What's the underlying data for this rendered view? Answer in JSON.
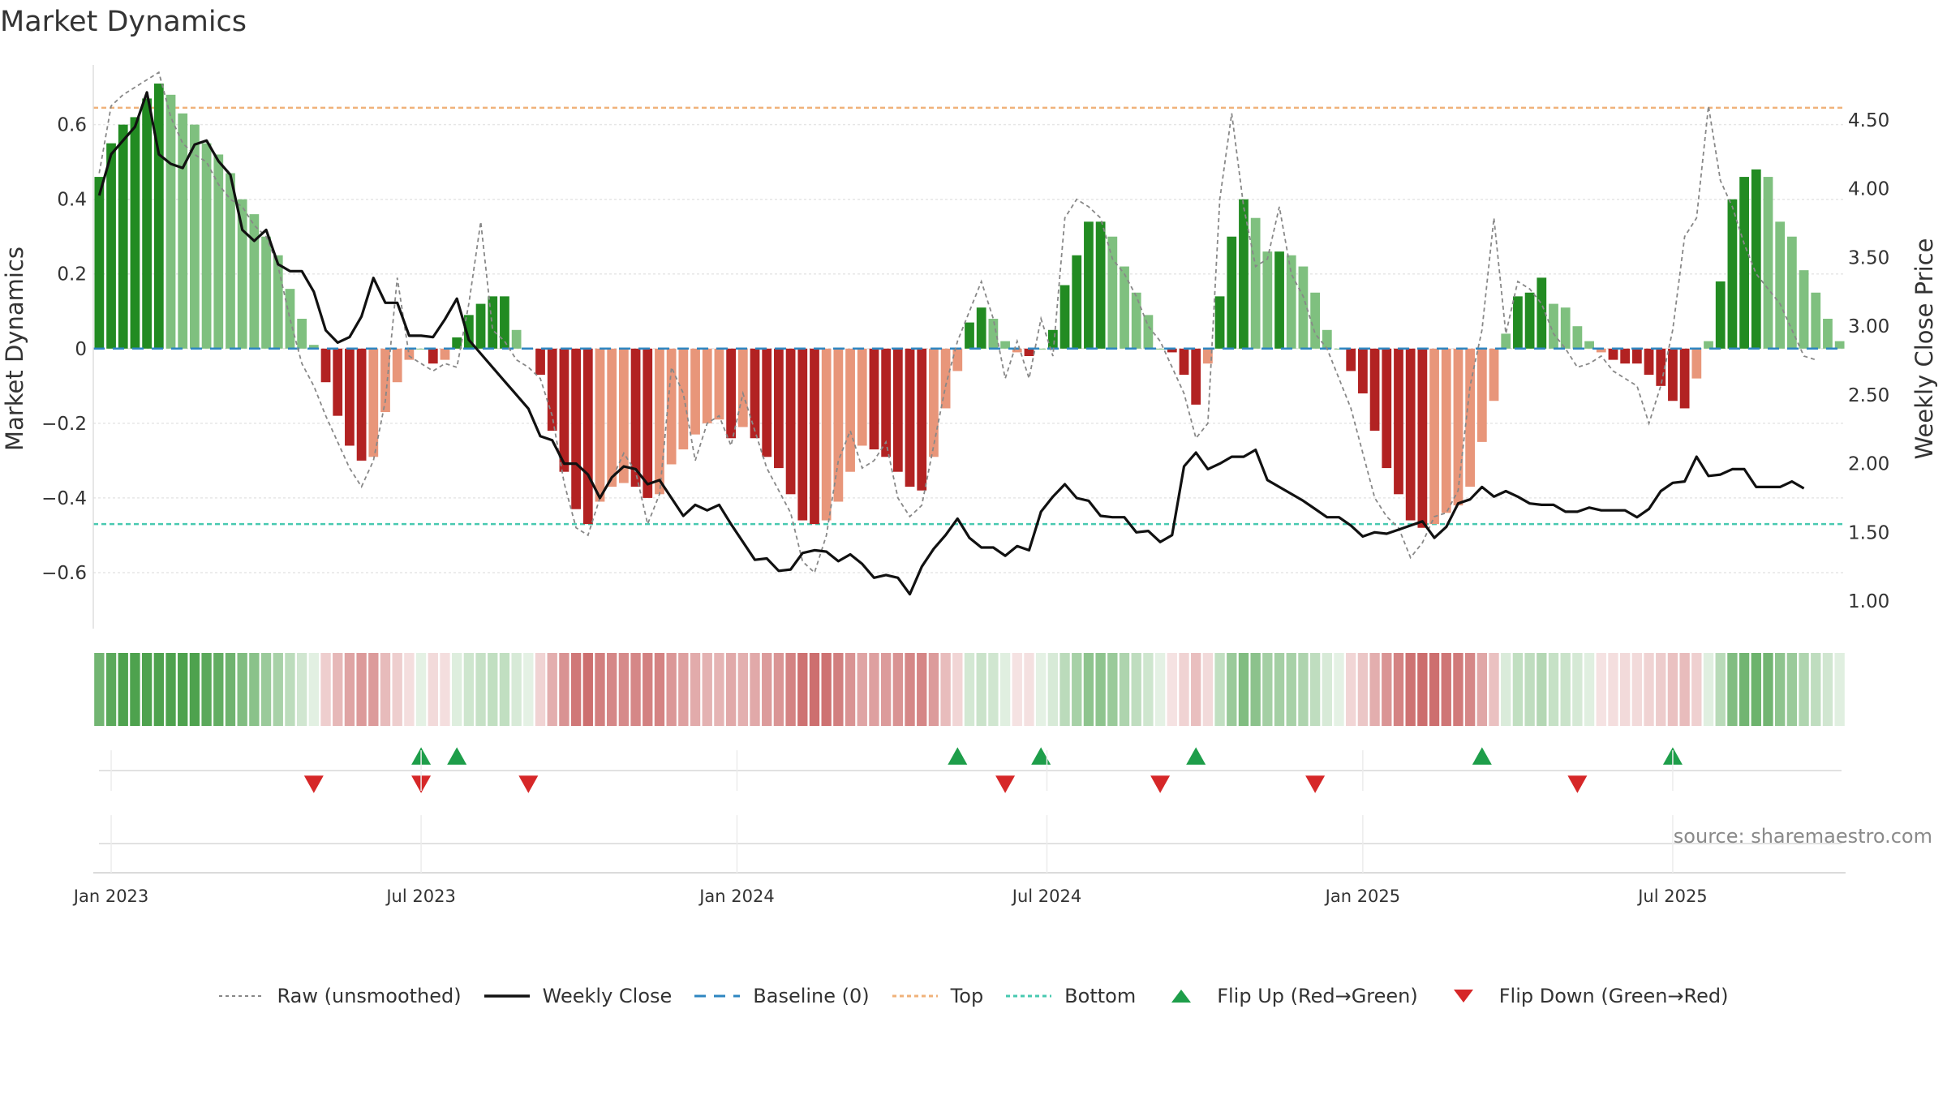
{
  "title": "Market Dynamics",
  "source": "source: sharemaestro.com",
  "colors": {
    "green_strong": "#228b22",
    "green_soft": "#7fc07f",
    "red_strong": "#b22222",
    "red_soft": "#e8967a",
    "top_line": "#f0b27a",
    "bottom_line": "#48c9b0",
    "baseline": "#2e86c1",
    "close_line": "#111111",
    "raw_line": "#888888",
    "flip_up": "#1e9e4a",
    "flip_down": "#d62728"
  },
  "chart_data": {
    "type": "bar",
    "title": "Market Dynamics",
    "ylabel": "Market Dynamics",
    "y2label": "Weekly Close Price",
    "ylim": [
      -0.75,
      0.76
    ],
    "y2lim": [
      0.8,
      4.9
    ],
    "yticks": [
      0.6,
      0.4,
      0.2,
      0,
      -0.2,
      -0.4,
      -0.6
    ],
    "ytick_labels": [
      "0.6",
      "0.4",
      "0.2",
      "0",
      "−0.2",
      "−0.4",
      "−0.6"
    ],
    "y2ticks": [
      4.5,
      4.0,
      3.5,
      3.0,
      2.5,
      2.0,
      1.5,
      1.0
    ],
    "y2tick_labels": [
      "4.50",
      "4.00",
      "3.50",
      "3.00",
      "2.50",
      "2.00",
      "1.50",
      "1.00"
    ],
    "x_start": "2022-12-26",
    "week_count": 145,
    "xticks": [
      {
        "label": "Jan 2023",
        "week": 1
      },
      {
        "label": "Jul 2023",
        "week": 27
      },
      {
        "label": "Jan 2024",
        "week": 53.5
      },
      {
        "label": "Jul 2024",
        "week": 79.5
      },
      {
        "label": "Jan 2025",
        "week": 106
      },
      {
        "label": "Jul 2025",
        "week": 132
      }
    ],
    "top": 0.645,
    "bottom": -0.47,
    "baseline": 0,
    "dynamics": [
      0.46,
      0.55,
      0.6,
      0.62,
      0.67,
      0.71,
      0.68,
      0.63,
      0.6,
      0.55,
      0.52,
      0.47,
      0.4,
      0.36,
      0.3,
      0.25,
      0.16,
      0.08,
      0.01,
      -0.09,
      -0.18,
      -0.26,
      -0.3,
      -0.29,
      -0.17,
      -0.09,
      -0.03,
      0.0,
      -0.04,
      -0.03,
      0.03,
      0.09,
      0.12,
      0.14,
      0.14,
      0.05,
      0.0,
      -0.07,
      -0.22,
      -0.33,
      -0.43,
      -0.47,
      -0.41,
      -0.37,
      -0.36,
      -0.37,
      -0.4,
      -0.39,
      -0.31,
      -0.27,
      -0.23,
      -0.2,
      -0.19,
      -0.24,
      -0.21,
      -0.24,
      -0.29,
      -0.32,
      -0.39,
      -0.46,
      -0.47,
      -0.46,
      -0.41,
      -0.33,
      -0.26,
      -0.27,
      -0.29,
      -0.33,
      -0.37,
      -0.38,
      -0.29,
      -0.16,
      -0.06,
      0.07,
      0.11,
      0.08,
      0.02,
      -0.01,
      -0.02,
      0.0,
      0.05,
      0.17,
      0.25,
      0.34,
      0.34,
      0.3,
      0.22,
      0.15,
      0.09,
      0.0,
      -0.01,
      -0.07,
      -0.15,
      -0.04,
      0.14,
      0.3,
      0.4,
      0.35,
      0.26,
      0.26,
      0.25,
      0.22,
      0.15,
      0.05,
      0.0,
      -0.06,
      -0.12,
      -0.22,
      -0.32,
      -0.39,
      -0.46,
      -0.48,
      -0.47,
      -0.44,
      -0.42,
      -0.37,
      -0.25,
      -0.14,
      0.04,
      0.14,
      0.15,
      0.19,
      0.12,
      0.11,
      0.06,
      0.02,
      -0.01,
      -0.03,
      -0.04,
      -0.04,
      -0.07,
      -0.1,
      -0.14,
      -0.16,
      -0.08,
      0.02,
      0.18,
      0.4,
      0.46,
      0.48,
      0.46,
      0.34,
      0.3,
      0.21,
      0.15,
      0.08,
      0.02
    ],
    "raw": [
      0.47,
      0.65,
      0.68,
      0.7,
      0.72,
      0.74,
      0.62,
      0.55,
      0.52,
      0.5,
      0.44,
      0.4,
      0.38,
      0.33,
      0.3,
      0.22,
      0.08,
      -0.04,
      -0.1,
      -0.18,
      -0.25,
      -0.32,
      -0.37,
      -0.3,
      -0.14,
      0.19,
      -0.02,
      -0.04,
      -0.06,
      -0.04,
      -0.05,
      0.12,
      0.34,
      0.05,
      0.02,
      -0.03,
      -0.05,
      -0.08,
      -0.18,
      -0.36,
      -0.48,
      -0.5,
      -0.4,
      -0.35,
      -0.28,
      -0.33,
      -0.47,
      -0.39,
      -0.05,
      -0.12,
      -0.3,
      -0.2,
      -0.18,
      -0.26,
      -0.12,
      -0.22,
      -0.32,
      -0.38,
      -0.44,
      -0.57,
      -0.6,
      -0.5,
      -0.3,
      -0.22,
      -0.32,
      -0.3,
      -0.25,
      -0.4,
      -0.45,
      -0.42,
      -0.26,
      -0.1,
      0.02,
      0.1,
      0.18,
      0.08,
      -0.08,
      0.02,
      -0.08,
      0.08,
      -0.02,
      0.35,
      0.4,
      0.38,
      0.35,
      0.24,
      0.2,
      0.14,
      0.06,
      0.02,
      -0.05,
      -0.12,
      -0.24,
      -0.2,
      0.4,
      0.63,
      0.38,
      0.22,
      0.24,
      0.38,
      0.2,
      0.14,
      0.04,
      0.0,
      -0.08,
      -0.16,
      -0.28,
      -0.4,
      -0.45,
      -0.48,
      -0.56,
      -0.52,
      -0.45,
      -0.44,
      -0.38,
      -0.1,
      0.05,
      0.35,
      0.04,
      0.18,
      0.16,
      0.12,
      0.04,
      0.0,
      -0.05,
      -0.04,
      -0.02,
      -0.06,
      -0.08,
      -0.1,
      -0.2,
      -0.1,
      0.05,
      0.3,
      0.35,
      0.65,
      0.45,
      0.38,
      0.28,
      0.2,
      0.16,
      0.12,
      0.05,
      -0.02,
      -0.03
    ],
    "close": [
      3.95,
      4.25,
      4.35,
      4.45,
      4.7,
      4.25,
      4.18,
      4.15,
      4.32,
      4.35,
      4.2,
      4.1,
      3.7,
      3.62,
      3.7,
      3.45,
      3.4,
      3.4,
      3.25,
      2.97,
      2.88,
      2.92,
      3.07,
      3.35,
      3.17,
      3.17,
      2.93,
      2.93,
      2.92,
      3.05,
      3.2,
      2.9,
      2.8,
      2.7,
      2.6,
      2.5,
      2.4,
      2.2,
      2.17,
      2.0,
      2.0,
      1.92,
      1.75,
      1.9,
      1.98,
      1.96,
      1.85,
      1.88,
      1.75,
      1.62,
      1.7,
      1.66,
      1.7,
      1.56,
      1.43,
      1.3,
      1.31,
      1.22,
      1.23,
      1.35,
      1.37,
      1.36,
      1.29,
      1.34,
      1.27,
      1.17,
      1.19,
      1.17,
      1.05,
      1.25,
      1.38,
      1.48,
      1.6,
      1.46,
      1.39,
      1.39,
      1.33,
      1.4,
      1.37,
      1.65,
      1.76,
      1.85,
      1.75,
      1.73,
      1.62,
      1.61,
      1.61,
      1.5,
      1.51,
      1.43,
      1.48,
      1.98,
      2.08,
      1.96,
      2.0,
      2.05,
      2.05,
      2.1,
      1.88,
      1.83,
      1.78,
      1.73,
      1.67,
      1.61,
      1.61,
      1.55,
      1.47,
      1.5,
      1.49,
      1.52,
      1.55,
      1.58,
      1.46,
      1.54,
      1.71,
      1.74,
      1.83,
      1.76,
      1.8,
      1.76,
      1.71,
      1.7,
      1.7,
      1.65,
      1.65,
      1.68,
      1.66,
      1.66,
      1.66,
      1.61,
      1.67,
      1.8,
      1.86,
      1.87,
      2.05,
      1.91,
      1.92,
      1.96,
      1.96,
      1.83,
      1.83,
      1.83,
      1.87,
      1.82
    ],
    "flip_up_weeks": [
      27,
      30,
      72,
      79,
      92,
      116,
      132
    ],
    "flip_down_weeks": [
      18,
      27,
      36,
      76,
      89,
      102,
      124
    ],
    "legend": [
      {
        "label": "Raw (unsmoothed)",
        "style": "dotted-gray"
      },
      {
        "label": "Weekly Close",
        "style": "solid-black"
      },
      {
        "label": "Baseline (0)",
        "style": "dashed-blue"
      },
      {
        "label": "Top",
        "style": "dotted-orange"
      },
      {
        "label": "Bottom",
        "style": "dotted-teal"
      },
      {
        "label": "Flip Up (Red→Green)",
        "style": "triangle-up-green"
      },
      {
        "label": "Flip Down (Green→Red)",
        "style": "triangle-down-red"
      }
    ]
  }
}
